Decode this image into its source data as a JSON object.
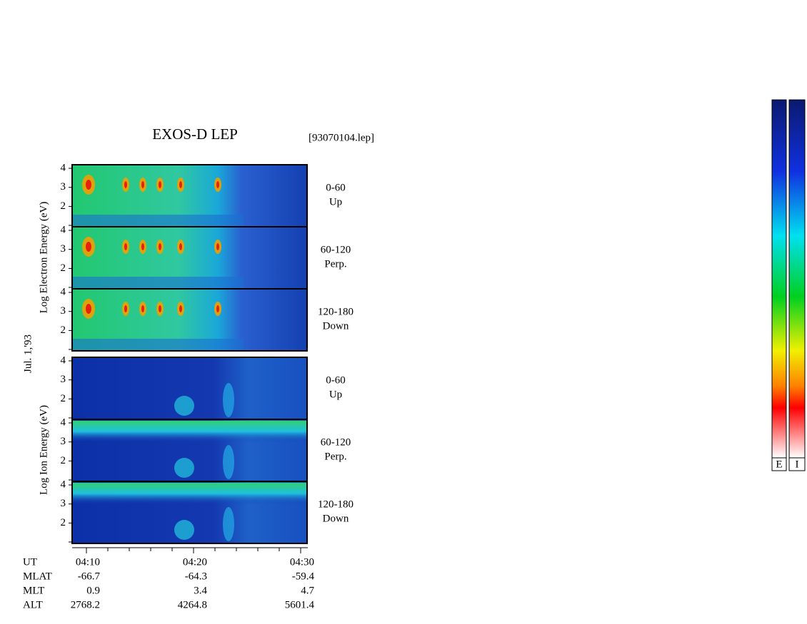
{
  "title": "EXOS-D LEP",
  "file": "[93070104.lep]",
  "date": "Jul. 1,'93",
  "electron_axis_label": "Log  Electron  Energy (eV)",
  "ion_axis_label": "Log  Ion  Energy (eV)",
  "panels": [
    {
      "angle": "0-60",
      "direction": "Up",
      "yticks": [
        "4",
        "3",
        "2"
      ]
    },
    {
      "angle": "60-120",
      "direction": "Perp.",
      "yticks": [
        "4",
        "3",
        "2"
      ]
    },
    {
      "angle": "120-180",
      "direction": "Down",
      "yticks": [
        "4",
        "3",
        "2"
      ]
    },
    {
      "angle": "0-60",
      "direction": "Up",
      "yticks": [
        "4",
        "3",
        "2"
      ]
    },
    {
      "angle": "60-120",
      "direction": "Perp.",
      "yticks": [
        "4",
        "3",
        "2"
      ]
    },
    {
      "angle": "120-180",
      "direction": "Down",
      "yticks": [
        "4",
        "3",
        "2"
      ]
    }
  ],
  "time_table": [
    [
      "UT",
      "04:10",
      "04:20",
      "04:30"
    ],
    [
      "MLAT",
      "-66.7",
      "-64.3",
      "-59.4"
    ],
    [
      "MLT",
      "0.9",
      "3.4",
      "4.7"
    ],
    [
      "ALT",
      "2768.2",
      "4264.8",
      "5601.4"
    ]
  ],
  "colorbar_labels": [
    "E",
    "I"
  ]
}
